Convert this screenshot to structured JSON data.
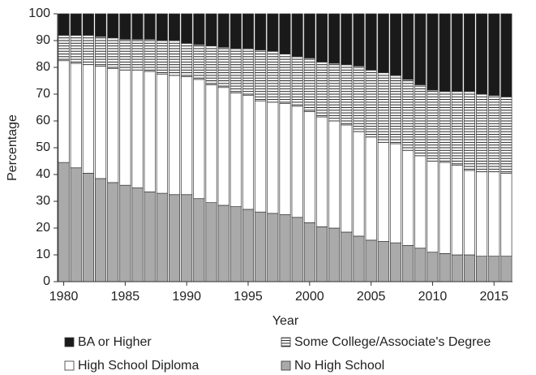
{
  "chart_data": {
    "type": "stacked-bar",
    "xlabel": "Year",
    "ylabel": "Percentage",
    "x": [
      1980,
      1981,
      1982,
      1983,
      1984,
      1985,
      1986,
      1987,
      1988,
      1989,
      1990,
      1991,
      1992,
      1993,
      1994,
      1995,
      1996,
      1997,
      1998,
      1999,
      2000,
      2001,
      2002,
      2003,
      2004,
      2005,
      2006,
      2007,
      2008,
      2009,
      2010,
      2011,
      2012,
      2013,
      2014,
      2015,
      2016
    ],
    "xlim": [
      1979.5,
      2016.5
    ],
    "xticks": [
      1980,
      1985,
      1990,
      1995,
      2000,
      2005,
      2010,
      2015
    ],
    "ylim": [
      0,
      100
    ],
    "yticks": [
      0,
      10,
      20,
      30,
      40,
      50,
      60,
      70,
      80,
      90,
      100
    ],
    "series": [
      {
        "name": "No High School",
        "color": "#aaaaaa",
        "hatch": "none",
        "values": [
          44.5,
          42.5,
          40.5,
          38.5,
          37,
          36,
          35,
          33.5,
          33,
          32.5,
          32.5,
          31,
          29.5,
          28.5,
          28,
          27,
          26,
          25.5,
          25,
          24,
          22,
          20.5,
          20,
          18.5,
          17,
          15.5,
          15,
          14.5,
          13.5,
          12.5,
          11,
          10.5,
          10,
          10,
          9.5,
          9.5,
          9.5
        ]
      },
      {
        "name": "High School Diploma",
        "color": "#ffffff",
        "hatch": "none",
        "values": [
          38,
          39,
          40.5,
          42,
          42.5,
          43,
          44,
          45,
          44.5,
          44.5,
          44,
          44.5,
          44,
          44,
          42.5,
          42.5,
          41.5,
          41.5,
          41.5,
          41.5,
          41.5,
          41,
          40,
          40,
          39,
          38.5,
          37,
          37,
          35.5,
          34.5,
          34,
          34,
          33.5,
          31.5,
          31.5,
          31.5,
          31
        ]
      },
      {
        "name": "Some College/Associate's Degree",
        "color": "#ffffff",
        "hatch": "horizontal",
        "values": [
          9.5,
          10.5,
          11,
          11,
          11.5,
          11.5,
          11.5,
          12,
          12.5,
          13,
          12.5,
          13,
          14.5,
          15,
          16.5,
          17.5,
          19,
          19,
          18.5,
          18.5,
          20,
          20.5,
          21.5,
          22.5,
          24.5,
          25,
          26,
          25.5,
          26.5,
          26.5,
          26.5,
          26.5,
          27.5,
          29.5,
          29,
          28.5,
          28.5
        ]
      },
      {
        "name": "BA or Higher",
        "color": "#1a1a1a",
        "hatch": "none",
        "values": [
          8,
          8,
          8,
          8.5,
          9,
          9.5,
          9.5,
          9.5,
          10,
          10,
          11,
          11.5,
          12,
          12.5,
          13,
          13,
          13.5,
          14,
          15,
          16,
          16.5,
          18,
          18.5,
          19,
          19.5,
          21,
          22,
          23,
          24.5,
          26.5,
          28.5,
          29,
          29,
          29,
          30,
          30.5,
          31
        ]
      }
    ]
  }
}
